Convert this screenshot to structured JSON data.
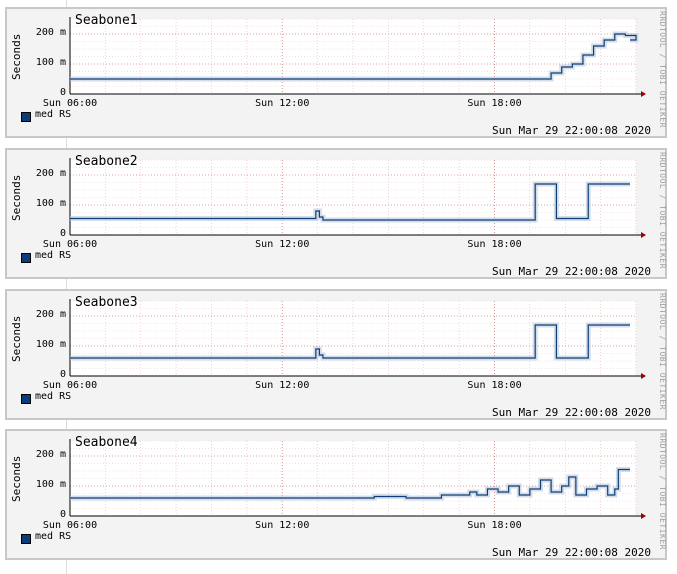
{
  "chart_data": [
    {
      "type": "line",
      "title": "Seabone1",
      "ylabel": "Seconds",
      "ytick_labels": [
        "0",
        "100 m",
        "200 m"
      ],
      "ylim": [
        0,
        0.25
      ],
      "xtick_labels": [
        "Sun 06:00",
        "Sun 12:00",
        "Sun 18:00"
      ],
      "xticks_hours": [
        6,
        12,
        18
      ],
      "xlim_hours": [
        6,
        22
      ],
      "legend": "med RS",
      "timestamp": "Sun Mar 29 22:00:08 2020",
      "watermark": "RRDTOOL / TOBI OETIKER",
      "series": [
        {
          "name": "med RS",
          "x": [
            6,
            19.3,
            19.6,
            19.9,
            20.2,
            20.5,
            20.8,
            21.1,
            21.4,
            21.7,
            22
          ],
          "y": [
            0.05,
            0.05,
            0.07,
            0.09,
            0.1,
            0.13,
            0.16,
            0.18,
            0.2,
            0.195,
            0.18
          ]
        }
      ]
    },
    {
      "type": "line",
      "title": "Seabone2",
      "ylabel": "Seconds",
      "ytick_labels": [
        "0",
        "100 m",
        "200 m"
      ],
      "ylim": [
        0,
        0.25
      ],
      "xtick_labels": [
        "Sun 06:00",
        "Sun 12:00",
        "Sun 18:00"
      ],
      "xticks_hours": [
        6,
        12,
        18
      ],
      "xlim_hours": [
        6,
        22
      ],
      "legend": "med RS",
      "timestamp": "Sun Mar 29 22:00:08 2020",
      "watermark": "RRDTOOL / TOBI OETIKER",
      "series": [
        {
          "name": "med RS",
          "x": [
            6,
            12.9,
            12.95,
            13.05,
            13.15,
            13.3,
            19.1,
            19.15,
            19.7,
            19.75,
            20.6,
            20.65,
            21.5
          ],
          "y": [
            0.055,
            0.055,
            0.08,
            0.06,
            0.05,
            0.05,
            0.05,
            0.17,
            0.17,
            0.055,
            0.055,
            0.17,
            0.17
          ]
        }
      ]
    },
    {
      "type": "line",
      "title": "Seabone3",
      "ylabel": "Seconds",
      "ytick_labels": [
        "0",
        "100 m",
        "200 m"
      ],
      "ylim": [
        0,
        0.25
      ],
      "xtick_labels": [
        "Sun 06:00",
        "Sun 12:00",
        "Sun 18:00"
      ],
      "xticks_hours": [
        6,
        12,
        18
      ],
      "xlim_hours": [
        6,
        22
      ],
      "legend": "med RS",
      "timestamp": "Sun Mar 29 22:00:08 2020",
      "watermark": "RRDTOOL / TOBI OETIKER",
      "series": [
        {
          "name": "med RS",
          "x": [
            6,
            12.9,
            12.95,
            13.05,
            13.15,
            13.3,
            19.1,
            19.15,
            19.7,
            19.75,
            20.6,
            20.65,
            21.5
          ],
          "y": [
            0.06,
            0.06,
            0.09,
            0.07,
            0.06,
            0.06,
            0.06,
            0.17,
            0.17,
            0.06,
            0.06,
            0.17,
            0.17
          ]
        }
      ]
    },
    {
      "type": "line",
      "title": "Seabone4",
      "ylabel": "Seconds",
      "ytick_labels": [
        "0",
        "100 m",
        "200 m"
      ],
      "ylim": [
        0,
        0.25
      ],
      "xtick_labels": [
        "Sun 06:00",
        "Sun 12:00",
        "Sun 18:00"
      ],
      "xticks_hours": [
        6,
        12,
        18
      ],
      "xlim_hours": [
        6,
        22
      ],
      "legend": "med RS",
      "timestamp": "Sun Mar 29 22:00:08 2020",
      "watermark": "RRDTOOL / TOBI OETIKER",
      "series": [
        {
          "name": "med RS",
          "x": [
            6,
            14.5,
            14.6,
            15.5,
            16.5,
            17.3,
            17.5,
            17.8,
            18.1,
            18.4,
            18.7,
            19.0,
            19.3,
            19.6,
            19.9,
            20.1,
            20.3,
            20.6,
            20.9,
            21.2,
            21.4,
            21.5
          ],
          "y": [
            0.06,
            0.06,
            0.065,
            0.06,
            0.07,
            0.08,
            0.07,
            0.09,
            0.08,
            0.1,
            0.07,
            0.09,
            0.12,
            0.08,
            0.1,
            0.13,
            0.07,
            0.09,
            0.1,
            0.07,
            0.09,
            0.155
          ]
        }
      ]
    }
  ]
}
